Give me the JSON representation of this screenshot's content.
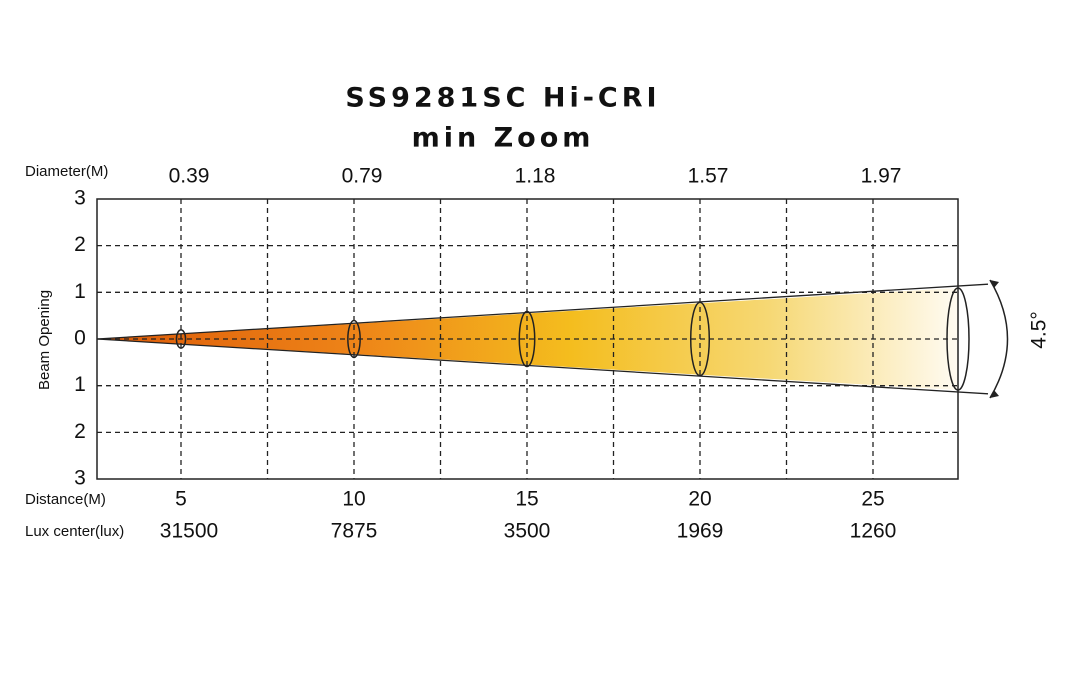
{
  "title": "SS9281SC Hi-CRI",
  "subtitle": "min Zoom",
  "diameter_label": "Diameter(M)",
  "distance_label": "Distance(M)",
  "lux_label": "Lux center(lux)",
  "y_axis_label": "Beam Opening",
  "yticks": [
    3,
    2,
    1,
    0,
    {
      "value": -1,
      "label": "1"
    },
    {
      "value": -2,
      "label": "2"
    },
    {
      "value": -3,
      "label": "3"
    }
  ],
  "distances": [
    5,
    10,
    15,
    20,
    25
  ],
  "diameters": [
    0.39,
    0.79,
    1.18,
    1.57,
    1.97
  ],
  "lux": [
    31500,
    7875,
    3500,
    1969,
    1260
  ],
  "beam_angle": "4.5°"
}
